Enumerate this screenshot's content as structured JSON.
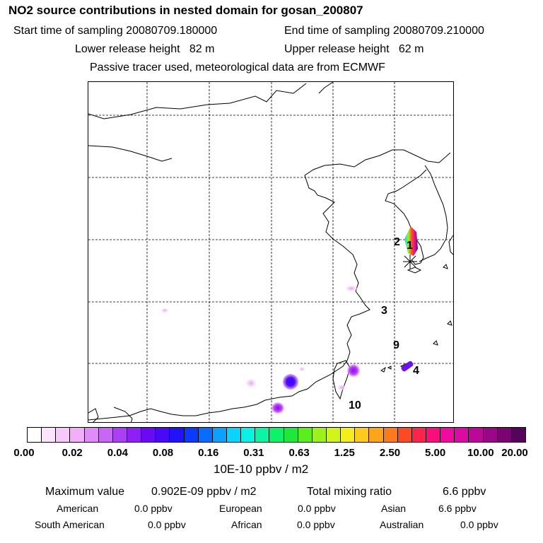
{
  "header": {
    "title": "NO2 source contributions in nested domain for gosan_200807",
    "start_label": "Start time of sampling 20080709.180000",
    "end_label": "End time of sampling 20080709.210000",
    "lower_label": "Lower release height   82 m",
    "upper_label": "Upper release height   62 m",
    "tracer_note": "Passive tracer used, meteorological data are from ECMWF"
  },
  "map": {
    "markers": [
      "1",
      "2",
      "3",
      "9",
      "4",
      "10"
    ],
    "site_symbol": "asterisk-icon"
  },
  "colorbar": {
    "unit": "10E-10 ppbv / m2",
    "ticks": [
      "0.00",
      "0.02",
      "0.04",
      "0.08",
      "0.16",
      "0.31",
      "0.63",
      "1.25",
      "2.50",
      "5.00",
      "10.00",
      "20.00"
    ],
    "colors": [
      "#ffffff",
      "#fde4fe",
      "#f8c8fc",
      "#f2aefb",
      "#e08cf8",
      "#c866f5",
      "#ac3ef5",
      "#8e1ff5",
      "#6a0af5",
      "#4a08f8",
      "#2212fa",
      "#0a3afc",
      "#0a6cfc",
      "#0aa2fc",
      "#0ad4fc",
      "#0af2e4",
      "#0af6a4",
      "#0ef26a",
      "#1ee83c",
      "#5aee1c",
      "#9ef01a",
      "#d2f41a",
      "#f6ee1c",
      "#fccc1c",
      "#fca41c",
      "#fc7a1c",
      "#fc4a24",
      "#fc2448",
      "#fc0c7c",
      "#f20aa0",
      "#dc0aa4",
      "#bc0898",
      "#9a0688",
      "#7a0472",
      "#56035a"
    ]
  },
  "summary": {
    "max_label": "Maximum value",
    "max_value": "0.902E-09 ppbv / m2",
    "total_label": "Total mixing ratio",
    "total_value": "6.6 ppbv",
    "regions": {
      "american_label": "American",
      "american_value": "0.0 ppbv",
      "european_label": "European",
      "european_value": "0.0 ppbv",
      "asian_label": "Asian",
      "asian_value": "6.6 ppbv",
      "south_american_label": "South American",
      "south_american_value": "0.0 ppbv",
      "african_label": "African",
      "african_value": "0.0 ppbv",
      "australian_label": "Australian",
      "australian_value": "0.0 ppbv"
    }
  }
}
